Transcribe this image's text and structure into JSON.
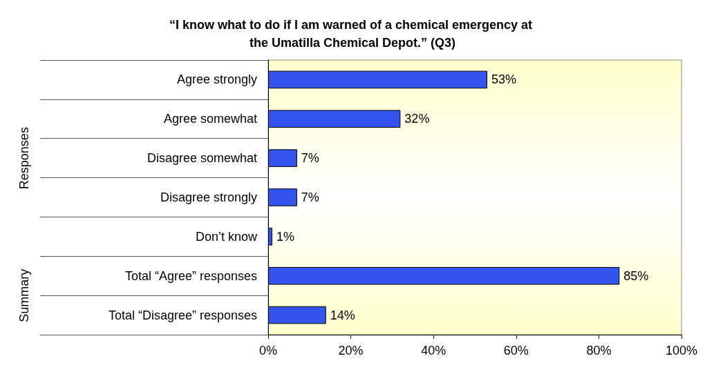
{
  "chart_data": {
    "type": "bar",
    "orientation": "horizontal",
    "title": "“I know what to do if I am warned of a chemical emergency at the Umatilla Chemical Depot.” (Q3)",
    "categories": [
      "Agree strongly",
      "Agree somewhat",
      "Disagree somewhat",
      "Disagree strongly",
      "Don’t know",
      "Total “Agree” responses",
      "Total “Disagree” responses"
    ],
    "values": [
      53,
      32,
      7,
      7,
      1,
      85,
      14
    ],
    "value_labels": [
      "53%",
      "32%",
      "7%",
      "7%",
      "1%",
      "85%",
      "14%"
    ],
    "color": "#3355ee",
    "xlim": [
      0,
      100
    ],
    "xticks": [
      {
        "value": 0,
        "label": "0%"
      },
      {
        "value": 20,
        "label": "20%"
      },
      {
        "value": 40,
        "label": "40%"
      },
      {
        "value": 60,
        "label": "60%"
      },
      {
        "value": 80,
        "label": "80%"
      },
      {
        "value": 100,
        "label": "100%"
      }
    ],
    "annotations": [
      "Responses",
      "Summary"
    ],
    "grid": false
  }
}
